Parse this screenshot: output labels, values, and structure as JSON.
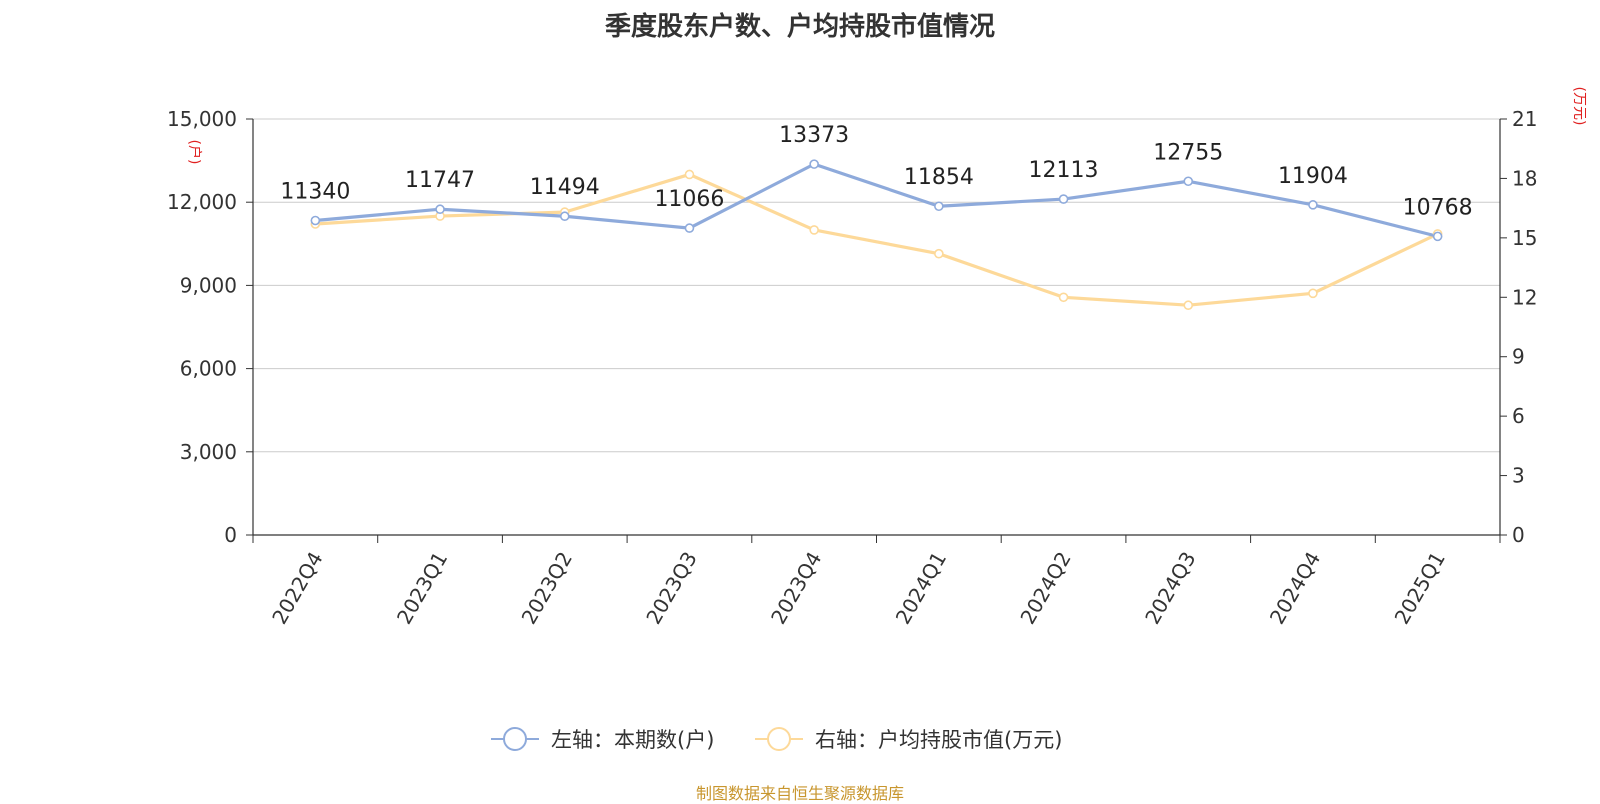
{
  "title": "季度股东户数、户均持股市值情况",
  "source": "制图数据来自恒生聚源数据库",
  "colors": {
    "left_series": "#8eaadb",
    "right_series": "#fdd999",
    "unit_label": "#e02020",
    "source": "#c8962e"
  },
  "chart_data": {
    "type": "line",
    "title": "季度股东户数、户均持股市值情况",
    "categories": [
      "2022Q4",
      "2023Q1",
      "2023Q2",
      "2023Q3",
      "2023Q4",
      "2024Q1",
      "2024Q2",
      "2024Q3",
      "2024Q4",
      "2025Q1"
    ],
    "left_axis": {
      "unit": "(户)",
      "ylim": [
        0,
        15000
      ],
      "ticks": [
        0,
        3000,
        6000,
        9000,
        12000,
        15000
      ],
      "tick_labels": [
        "0",
        "3,000",
        "6,000",
        "9,000",
        "12,000",
        "15,000"
      ]
    },
    "right_axis": {
      "unit": "(万元)",
      "ylim": [
        0,
        21
      ],
      "ticks": [
        0,
        3,
        6,
        9,
        12,
        15,
        18,
        21
      ],
      "tick_labels": [
        "0",
        "3",
        "6",
        "9",
        "12",
        "15",
        "18",
        "21"
      ]
    },
    "grid": true,
    "legend_position": "bottom-center",
    "series": [
      {
        "name": "左轴：本期数(户)",
        "axis": "left",
        "values": [
          11340,
          11747,
          11494,
          11066,
          13373,
          11854,
          12113,
          12755,
          11904,
          10768
        ],
        "labels": [
          "11340",
          "11747",
          "11494",
          "11066",
          "13373",
          "11854",
          "12113",
          "12755",
          "11904",
          "10768"
        ]
      },
      {
        "name": "右轴：户均持股市值(万元)",
        "axis": "right",
        "values": [
          15.7,
          16.1,
          16.3,
          18.2,
          15.4,
          14.2,
          12.0,
          11.6,
          12.2,
          15.2
        ]
      }
    ]
  }
}
